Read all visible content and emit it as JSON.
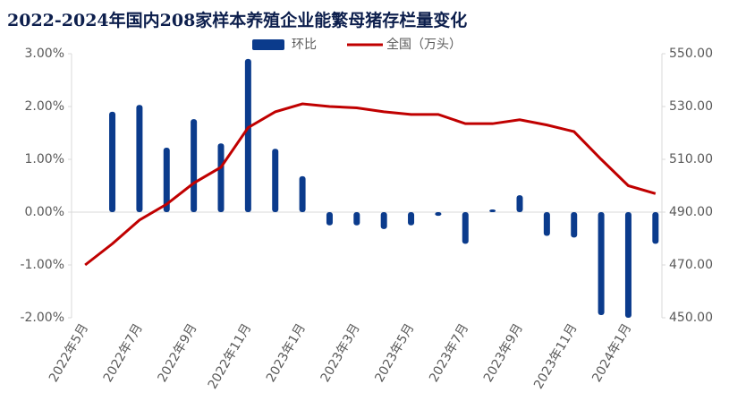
{
  "chart_data": {
    "type": "bar-line",
    "title": "2022-2024年国内208家样本养殖企业能繁母猪存栏量变化",
    "categories": [
      "2022年5月",
      null,
      "2022年7月",
      null,
      "2022年9月",
      null,
      "2022年11月",
      null,
      "2023年1月",
      null,
      "2023年3月",
      null,
      "2023年5月",
      null,
      "2023年7月",
      null,
      "2023年9月",
      null,
      "2023年11月",
      null,
      "2024年1月",
      null
    ],
    "series": [
      {
        "name": "环比",
        "color": "#0b3b8c",
        "type": "bar",
        "axis": "y",
        "values": [
          null,
          1.9,
          2.03,
          1.22,
          1.76,
          1.3,
          2.9,
          1.2,
          0.68,
          -0.25,
          -0.25,
          -0.32,
          -0.25,
          -0.07,
          -0.6,
          0.05,
          0.32,
          -0.45,
          -0.48,
          -1.95,
          -2.0,
          -0.6
        ]
      },
      {
        "name": "全国（万头）",
        "color": "#c00000",
        "type": "line",
        "axis": "y2",
        "values": [
          470,
          478,
          487,
          493,
          501,
          507,
          522,
          528,
          531,
          530,
          529.5,
          528,
          527,
          527,
          523.5,
          523.5,
          525,
          523,
          520.5,
          510,
          500,
          497
        ]
      }
    ],
    "ylim": [
      -2,
      3
    ],
    "yticks": [
      {
        "value": -2,
        "label": "-2.00%"
      },
      {
        "value": -1,
        "label": "-1.00%"
      },
      {
        "value": 0,
        "label": "0.00%"
      },
      {
        "value": 1,
        "label": "1.00%"
      },
      {
        "value": 2,
        "label": "2.00%"
      },
      {
        "value": 3,
        "label": "3.00%"
      }
    ],
    "y2lim": [
      450,
      550
    ],
    "y2ticks": [
      {
        "value": 450,
        "label": "450.00"
      },
      {
        "value": 470,
        "label": "470.00"
      },
      {
        "value": 490,
        "label": "490.00"
      },
      {
        "value": 510,
        "label": "510.00"
      },
      {
        "value": 530,
        "label": "530.00"
      },
      {
        "value": 550,
        "label": "550.00"
      }
    ],
    "legend": "top"
  }
}
